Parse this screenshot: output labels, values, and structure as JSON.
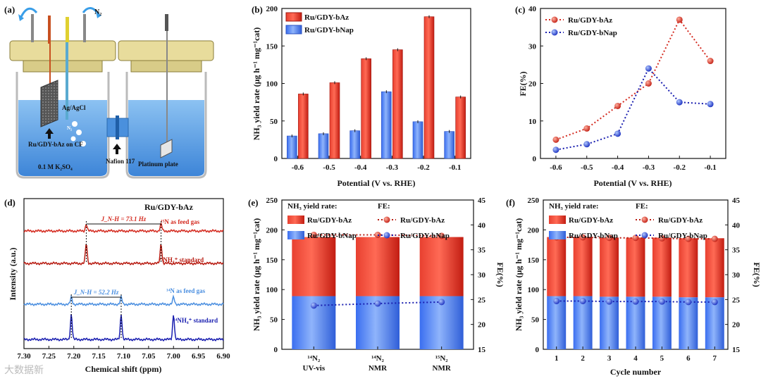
{
  "watermark": "大数据新",
  "colors": {
    "red": "#d42a1f",
    "darkred": "#b81c12",
    "blue": "#3d6ff0",
    "lightblue": "#7aa8f5",
    "navy": "#1a1fb0",
    "nmr_blue": "#4b8fe0",
    "water": "#5a9ee6"
  },
  "panel_a": {
    "label": "(a)",
    "n2_label": "N₂",
    "electrode_label": "Ru/GDY-bAz on CF",
    "ref_label": "Ag/AgCl",
    "bubble_label": "N₂",
    "electrolyte": "0.1 M K₂SO₄",
    "membrane": "Nafion 117",
    "counter": "Platinum plate"
  },
  "chart_data": [
    {
      "panel": "(b)",
      "type": "bar",
      "xlabel": "Potential (V vs. RHE)",
      "ylabel": "NH₃ yield rate (μg h⁻¹ mg⁻¹cat)",
      "categories": [
        "-0.6",
        "-0.5",
        "-0.4",
        "-0.3",
        "-0.2",
        "-0.1"
      ],
      "ylim": [
        0,
        200
      ],
      "yticks": [
        0,
        50,
        100,
        150,
        200
      ],
      "legend": "top-left",
      "series": [
        {
          "name": "Ru/GDY-bAz",
          "values": [
            86,
            101,
            133,
            145,
            189,
            82
          ]
        },
        {
          "name": "Ru/GDY-bNap",
          "values": [
            30,
            33,
            37,
            89,
            49,
            36
          ]
        }
      ]
    },
    {
      "panel": "(c)",
      "type": "line",
      "xlabel": "Potential (V vs. RHE)",
      "ylabel": "FE(%)",
      "x": [
        "-0.6",
        "-0.5",
        "-0.4",
        "-0.3",
        "-0.2",
        "-0.1"
      ],
      "ylim": [
        0,
        40
      ],
      "yticks": [
        0,
        10,
        20,
        30,
        40
      ],
      "legend": "top-left",
      "series": [
        {
          "name": "Ru/GDY-bAz",
          "values": [
            5,
            8,
            14,
            20,
            37,
            26
          ]
        },
        {
          "name": "Ru/GDY-bNap",
          "values": [
            2.3,
            3.8,
            6.6,
            24,
            15,
            14.5
          ]
        }
      ]
    },
    {
      "panel": "(d)",
      "type": "line",
      "title": "Ru/GDY-bAz",
      "xlabel": "Chemical shift (ppm)",
      "ylabel": "Intensity (a.u.)",
      "xlim": [
        7.3,
        6.9
      ],
      "xticks": [
        "7.30",
        "7.25",
        "7.20",
        "7.15",
        "7.10",
        "7.05",
        "7.00",
        "6.95",
        "6.90"
      ],
      "annotations": [
        "J_N-H = 73.1 Hz",
        "J_N-H = 52.2 Hz"
      ],
      "series": [
        {
          "name": "¹⁵N as feed gas",
          "peaks_ppm": [
            7.175,
            7.025
          ]
        },
        {
          "name": "¹⁵NH₄⁺ standard",
          "peaks_ppm": [
            7.175,
            7.025
          ]
        },
        {
          "name": "¹⁴N as feed gas",
          "peaks_ppm": [
            7.205,
            7.105,
            7.0
          ]
        },
        {
          "name": "¹⁴NH₄⁺ standard",
          "peaks_ppm": [
            7.205,
            7.105,
            7.0
          ]
        }
      ]
    },
    {
      "panel": "(e)",
      "type": "bar",
      "xlabel": "",
      "ylabel": "NH₃ yield rate (μg h⁻¹ mg⁻¹cat)",
      "y2label": "FE(%)",
      "categories": [
        "¹⁴N₂ UV-vis",
        "¹⁴N₂ NMR",
        "¹⁵N₂ NMR"
      ],
      "ylim": [
        0,
        250
      ],
      "yticks": [
        0,
        50,
        100,
        150,
        200,
        250
      ],
      "y2lim": [
        15,
        45
      ],
      "y2ticks": [
        15,
        20,
        25,
        30,
        35,
        40,
        45
      ],
      "legend_yield_title": "NH₃ yield rate:",
      "legend_fe_title": "FE:",
      "series": [
        {
          "name": "Ru/GDY-bAz",
          "values": [
            188,
            188,
            188
          ],
          "fe": [
            38,
            38,
            37.8
          ]
        },
        {
          "name": "Ru/GDY-bNap",
          "values": [
            89,
            89,
            89
          ],
          "fe": [
            23.8,
            24.2,
            24.5
          ]
        }
      ]
    },
    {
      "panel": "(f)",
      "type": "bar",
      "xlabel": "Cycle number",
      "ylabel": "NH₃ yield rate (μg h⁻¹ mg⁻¹cat)",
      "y2label": "FE(%)",
      "categories": [
        "1",
        "2",
        "3",
        "4",
        "5",
        "6",
        "7"
      ],
      "ylim": [
        0,
        250
      ],
      "yticks": [
        0,
        50,
        100,
        150,
        200,
        250
      ],
      "y2lim": [
        15,
        45
      ],
      "y2ticks": [
        15,
        20,
        25,
        30,
        35,
        40,
        45
      ],
      "legend_yield_title": "NH₃ yield rate:",
      "legend_fe_title": "FE:",
      "series": [
        {
          "name": "Ru/GDY-bAz",
          "values": [
            188,
            188,
            187,
            187,
            187,
            186,
            186
          ],
          "fe": [
            37.5,
            37.5,
            37.4,
            37.4,
            37.3,
            37.2,
            37.2
          ]
        },
        {
          "name": "Ru/GDY-bNap",
          "values": [
            89,
            89,
            88,
            88,
            88,
            87,
            87
          ],
          "fe": [
            24.7,
            24.7,
            24.6,
            24.6,
            24.6,
            24.5,
            24.5
          ]
        }
      ]
    }
  ]
}
